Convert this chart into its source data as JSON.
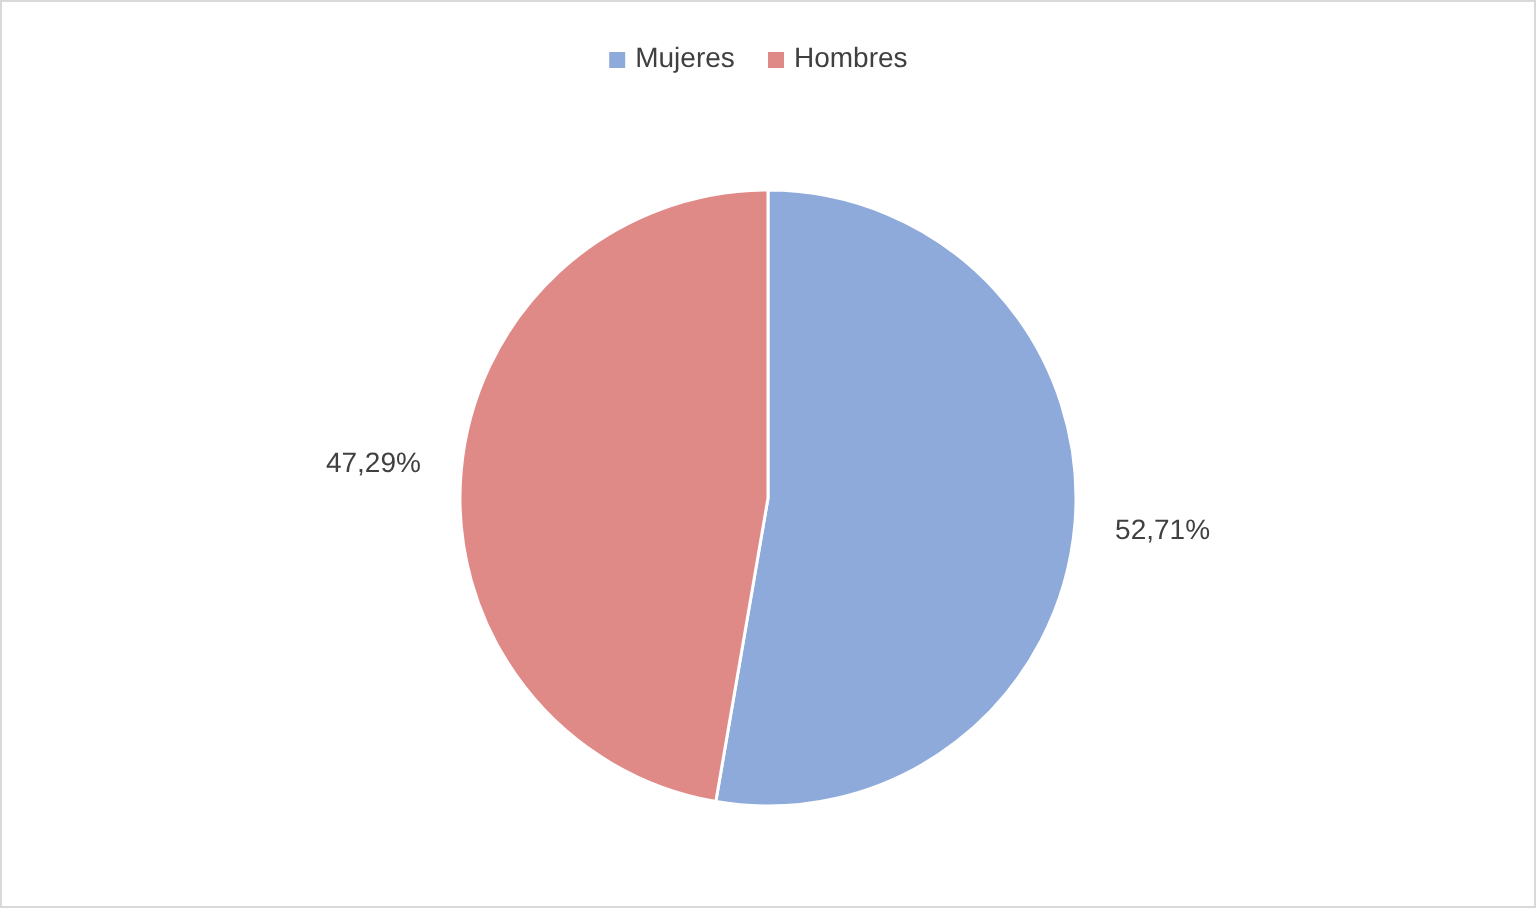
{
  "chart_data": {
    "type": "pie",
    "categories": [
      "Mujeres",
      "Hombres"
    ],
    "values": [
      52.71,
      47.29
    ],
    "colors": [
      "#8eaadb",
      "#e08a88"
    ],
    "value_labels": [
      "52,71%",
      "47,29%"
    ],
    "legend": "top"
  }
}
